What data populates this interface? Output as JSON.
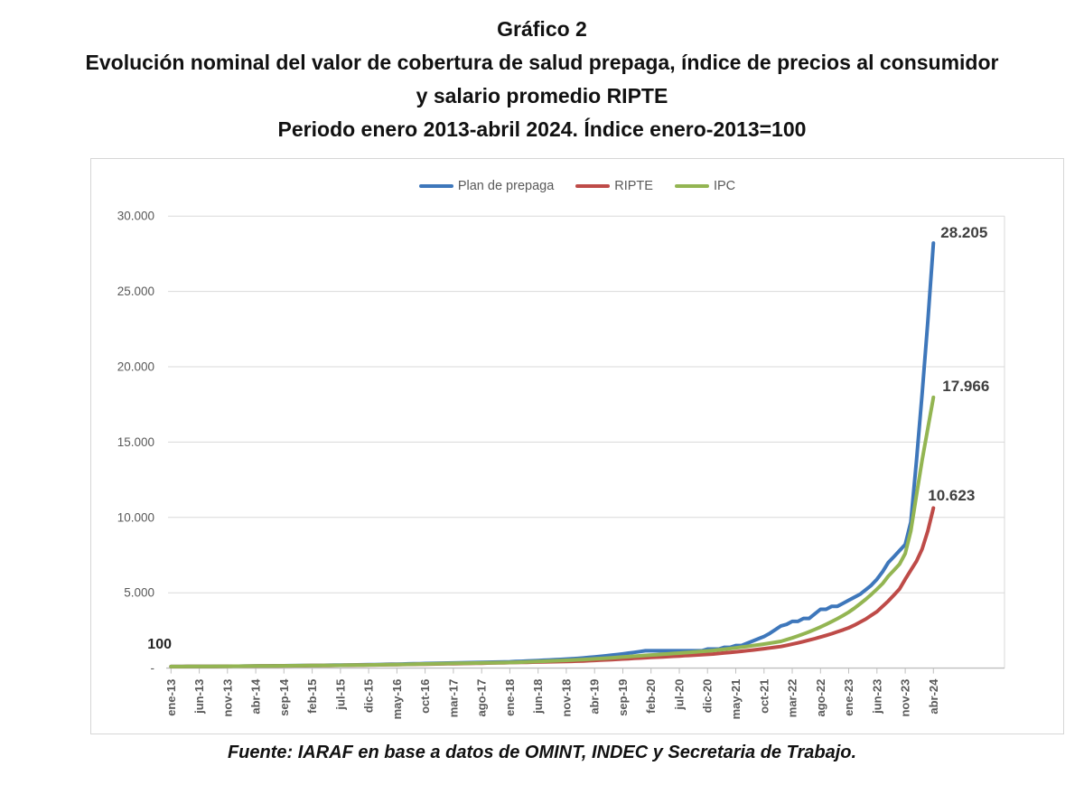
{
  "title": {
    "line1": "Gráfico 2",
    "line2": "Evolución nominal del valor de cobertura de salud prepaga, índice de precios al consumidor",
    "line3": "y salario promedio RIPTE",
    "line4": "Periodo enero 2013-abril 2024. Índice enero-2013=100"
  },
  "source": "Fuente: IARAF en base a datos de OMINT, INDEC y Secretaria de Trabajo.",
  "chart_data": {
    "type": "line",
    "x_unit": "month",
    "x_range": [
      "ene-13",
      "abr-24"
    ],
    "n_points": 136,
    "base_index_note": "índice enero-2013=100",
    "grid": "horizontal",
    "legend_position": "top",
    "start_label": "100",
    "ylim": [
      0,
      31500
    ],
    "x_tick_labels": [
      "ene-13",
      "jun-13",
      "nov-13",
      "abr-14",
      "sep-14",
      "feb-15",
      "jul-15",
      "dic-15",
      "may-16",
      "oct-16",
      "mar-17",
      "ago-17",
      "ene-18",
      "jun-18",
      "nov-18",
      "abr-19",
      "sep-19",
      "feb-20",
      "jul-20",
      "dic-20",
      "may-21",
      "oct-21",
      "mar-22",
      "ago-22",
      "ene-23",
      "jun-23",
      "nov-23",
      "abr-24"
    ],
    "y_ticks": [
      {
        "value": 30000,
        "label": "30.000"
      },
      {
        "value": 25000,
        "label": "25.000"
      },
      {
        "value": 20000,
        "label": "20.000"
      },
      {
        "value": 15000,
        "label": "15.000"
      },
      {
        "value": 10000,
        "label": "10.000"
      },
      {
        "value": 5000,
        "label": "5.000"
      },
      {
        "value": 0,
        "label": "-"
      }
    ],
    "series": [
      {
        "name": "Plan de prepaga",
        "color": "#3E77BB",
        "end_label": "28.205",
        "end_value": 28205,
        "values": [
          100,
          102,
          104,
          106,
          109,
          111,
          113,
          116,
          118,
          121,
          123,
          126,
          128,
          131,
          134,
          138,
          141,
          145,
          148,
          152,
          156,
          160,
          164,
          168,
          172,
          177,
          181,
          186,
          191,
          196,
          201,
          206,
          212,
          217,
          223,
          229,
          235,
          242,
          249,
          256,
          263,
          271,
          279,
          287,
          295,
          303,
          312,
          321,
          330,
          337,
          344,
          351,
          358,
          365,
          373,
          380,
          388,
          396,
          404,
          412,
          420,
          435,
          451,
          467,
          484,
          501,
          519,
          538,
          557,
          577,
          598,
          619,
          640,
          672,
          706,
          741,
          778,
          817,
          858,
          901,
          946,
          994,
          1043,
          1095,
          1150,
          1150,
          1150,
          1150,
          1150,
          1150,
          1150,
          1150,
          1150,
          1150,
          1150,
          1265,
          1265,
          1265,
          1379,
          1379,
          1500,
          1500,
          1650,
          1800,
          1950,
          2100,
          2300,
          2550,
          2800,
          2900,
          3100,
          3100,
          3300,
          3300,
          3600,
          3900,
          3900,
          4100,
          4100,
          4300,
          4500,
          4700,
          4900,
          5200,
          5500,
          5900,
          6400,
          7000,
          7400,
          7800,
          8200,
          9700,
          13800,
          18200,
          23000,
          28205
        ]
      },
      {
        "name": "RIPTE",
        "color": "#BE4B48",
        "end_label": "10.623",
        "end_value": 10623,
        "values": [
          100,
          102,
          104,
          106,
          108,
          110,
          112,
          114,
          116,
          118,
          121,
          123,
          125,
          128,
          130,
          133,
          136,
          139,
          142,
          145,
          148,
          151,
          154,
          158,
          161,
          165,
          169,
          172,
          176,
          181,
          185,
          189,
          193,
          198,
          203,
          207,
          212,
          217,
          222,
          227,
          233,
          238,
          244,
          249,
          255,
          261,
          267,
          274,
          280,
          286,
          293,
          299,
          306,
          312,
          319,
          326,
          334,
          341,
          348,
          356,
          364,
          371,
          378,
          386,
          394,
          401,
          409,
          417,
          426,
          434,
          443,
          451,
          460,
          476,
          492,
          509,
          527,
          545,
          563,
          583,
          603,
          624,
          645,
          667,
          690,
          708,
          726,
          745,
          764,
          784,
          804,
          825,
          846,
          868,
          890,
          913,
          936,
          970,
          1005,
          1041,
          1079,
          1118,
          1159,
          1201,
          1244,
          1289,
          1336,
          1384,
          1434,
          1510,
          1591,
          1675,
          1764,
          1858,
          1957,
          2061,
          2171,
          2286,
          2408,
          2536,
          2672,
          2850,
          3050,
          3250,
          3500,
          3750,
          4100,
          4450,
          4850,
          5250,
          5900,
          6500,
          7100,
          7900,
          9100,
          10623
        ]
      },
      {
        "name": "IPC",
        "color": "#93B552",
        "end_label": "17.966",
        "end_value": 17966,
        "values": [
          100,
          102,
          104,
          106,
          108,
          110,
          113,
          115,
          117,
          120,
          122,
          124,
          127,
          130,
          133,
          136,
          139,
          142,
          145,
          148,
          152,
          155,
          159,
          162,
          166,
          170,
          173,
          177,
          180,
          184,
          188,
          192,
          196,
          200,
          204,
          209,
          213,
          219,
          225,
          232,
          238,
          245,
          252,
          259,
          267,
          274,
          282,
          290,
          298,
          304,
          309,
          315,
          321,
          327,
          333,
          339,
          345,
          352,
          358,
          365,
          372,
          384,
          397,
          410,
          424,
          438,
          453,
          468,
          483,
          499,
          516,
          533,
          551,
          571,
          592,
          614,
          636,
          660,
          684,
          709,
          735,
          762,
          789,
          818,
          848,
          871,
          895,
          919,
          944,
          969,
          996,
          1023,
          1050,
          1079,
          1108,
          1138,
          1168,
          1209,
          1252,
          1297,
          1342,
          1390,
          1439,
          1490,
          1543,
          1597,
          1654,
          1713,
          1773,
          1886,
          2005,
          2133,
          2268,
          2412,
          2565,
          2728,
          2901,
          3085,
          3281,
          3490,
          3712,
          3977,
          4260,
          4564,
          4889,
          5238,
          5611,
          6100,
          6500,
          6900,
          7600,
          9100,
          11500,
          13800,
          15900,
          17966
        ]
      }
    ]
  }
}
